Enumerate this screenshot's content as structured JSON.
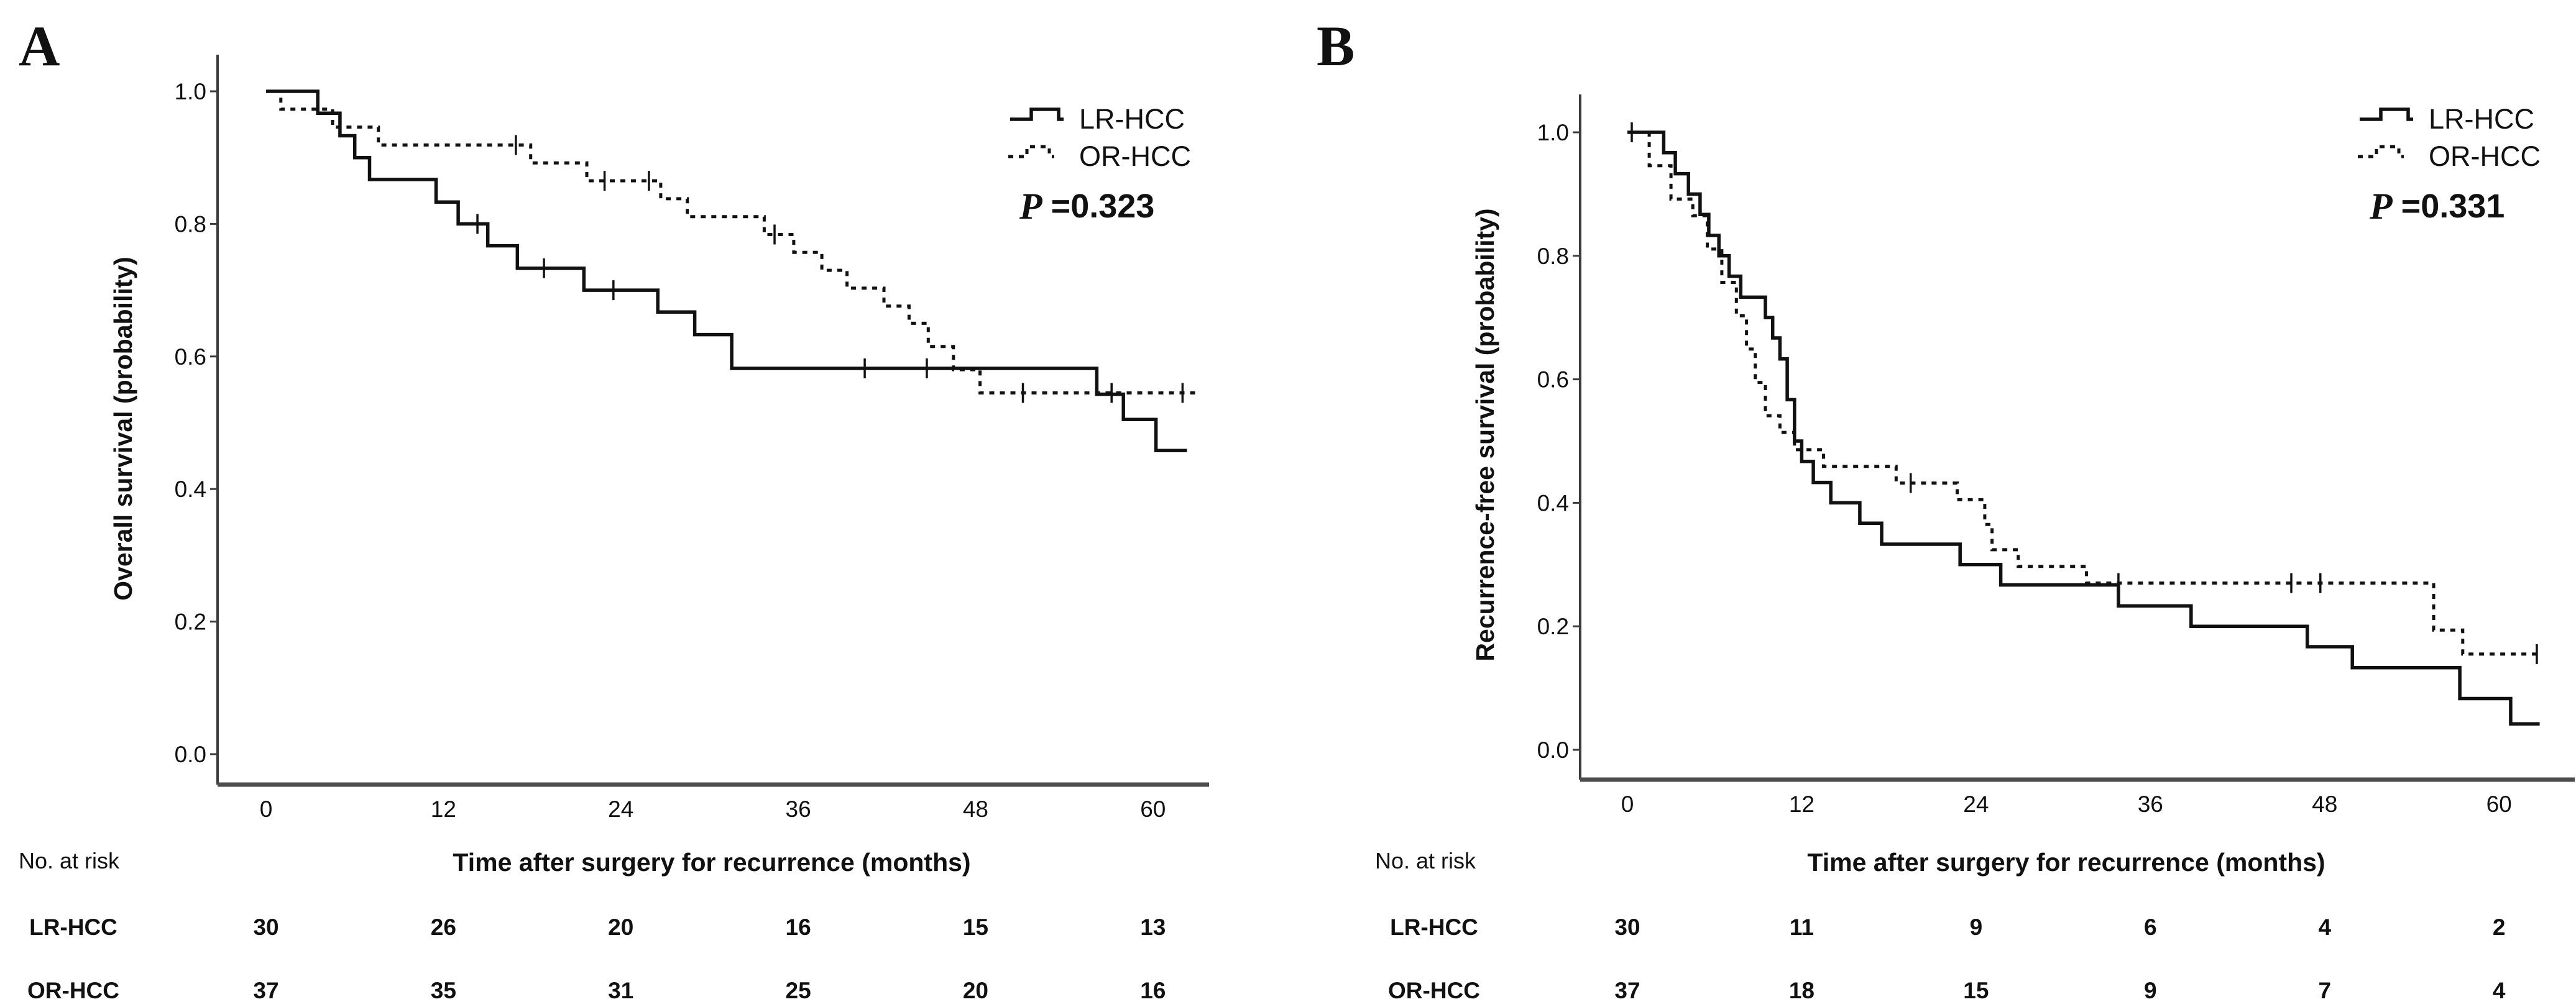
{
  "figure": {
    "background": "#ffffff",
    "line_color": "#111111",
    "axis_color": "#4d4d4d"
  },
  "chart_data": [
    {
      "panel_letter": "A",
      "type": "line",
      "subtype": "kaplan-meier-step",
      "title": "",
      "xlabel": "Time after surgery for recurrence (months)",
      "ylabel": "Overall survival (probability)",
      "p_label": "P",
      "p_value": "=0.323",
      "legend_position": "top-right",
      "grid": false,
      "xlim": [
        0,
        63.5
      ],
      "ylim": [
        0.0,
        1.0
      ],
      "x_ticks": [
        0,
        12,
        24,
        36,
        48,
        60
      ],
      "y_ticks": [
        "1.0",
        "0.8",
        "0.6",
        "0.4",
        "0.2",
        "0.0"
      ],
      "series": [
        {
          "name": "LR-HCC",
          "line_style": "solid",
          "start": [
            0,
            1.0
          ],
          "steps": [
            [
              3.5,
              0.967
            ],
            [
              5,
              0.933
            ],
            [
              6,
              0.9
            ],
            [
              7,
              0.867
            ],
            [
              11.5,
              0.833
            ],
            [
              13,
              0.8
            ],
            [
              15,
              0.767
            ],
            [
              17,
              0.733
            ],
            [
              21.5,
              0.7
            ],
            [
              26.5,
              0.667
            ],
            [
              29,
              0.633
            ],
            [
              31.5,
              0.582
            ],
            [
              56.2,
              0.543
            ],
            [
              58,
              0.505
            ],
            [
              60.2,
              0.458
            ]
          ],
          "censors": [
            [
              14.3,
              0.8
            ],
            [
              18.8,
              0.733
            ],
            [
              23.5,
              0.7
            ],
            [
              40.5,
              0.582
            ],
            [
              44.7,
              0.582
            ]
          ],
          "end_month": 62.3
        },
        {
          "name": "OR-HCC",
          "line_style": "dotted",
          "start": [
            0,
            1.0
          ],
          "steps": [
            [
              1,
              0.973
            ],
            [
              4.5,
              0.946
            ],
            [
              7.6,
              0.919
            ],
            [
              17.9,
              0.892
            ],
            [
              21.7,
              0.865
            ],
            [
              26.7,
              0.838
            ],
            [
              28.5,
              0.811
            ],
            [
              33.7,
              0.784
            ],
            [
              35.7,
              0.757
            ],
            [
              37.6,
              0.73
            ],
            [
              39.3,
              0.703
            ],
            [
              41.8,
              0.676
            ],
            [
              43.5,
              0.65
            ],
            [
              44.8,
              0.615
            ],
            [
              46.5,
              0.58
            ],
            [
              48.3,
              0.545
            ]
          ],
          "censors": [
            [
              16.9,
              0.919
            ],
            [
              22.9,
              0.865
            ],
            [
              25.9,
              0.865
            ],
            [
              34.4,
              0.784
            ],
            [
              51.2,
              0.545
            ],
            [
              57.2,
              0.545
            ],
            [
              62,
              0.545
            ]
          ],
          "end_month": 63
        }
      ],
      "risk_table": {
        "header": "No. at risk",
        "time_points": [
          0,
          12,
          24,
          36,
          48,
          60
        ],
        "rows": [
          {
            "label": "LR-HCC",
            "values": [
              30,
              26,
              20,
              16,
              15,
              13
            ]
          },
          {
            "label": "OR-HCC",
            "values": [
              37,
              35,
              31,
              25,
              20,
              16
            ]
          }
        ]
      }
    },
    {
      "panel_letter": "B",
      "type": "line",
      "subtype": "kaplan-meier-step",
      "title": "",
      "xlabel": "Time after surgery for recurrence (months)",
      "ylabel": "Recurrence-free survival (probability)",
      "p_label": "P",
      "p_value": "=0.331",
      "legend_position": "top-right",
      "grid": false,
      "xlim": [
        0,
        63.5
      ],
      "ylim": [
        0.0,
        1.0
      ],
      "x_ticks": [
        0,
        12,
        24,
        36,
        48,
        60
      ],
      "y_ticks": [
        "1.0",
        "0.8",
        "0.6",
        "0.4",
        "0.2",
        "0.0"
      ],
      "series": [
        {
          "name": "LR-HCC",
          "line_style": "solid",
          "start": [
            0,
            1.0
          ],
          "steps": [
            [
              2.5,
              0.967
            ],
            [
              3.3,
              0.933
            ],
            [
              4.2,
              0.9
            ],
            [
              5,
              0.867
            ],
            [
              5.6,
              0.833
            ],
            [
              6.3,
              0.8
            ],
            [
              7,
              0.767
            ],
            [
              7.8,
              0.733
            ],
            [
              9.5,
              0.7
            ],
            [
              10,
              0.667
            ],
            [
              10.5,
              0.633
            ],
            [
              11,
              0.567
            ],
            [
              11.5,
              0.5
            ],
            [
              12,
              0.467
            ],
            [
              12.8,
              0.433
            ],
            [
              14,
              0.4
            ],
            [
              16,
              0.367
            ],
            [
              17.5,
              0.333
            ],
            [
              22.9,
              0.3
            ],
            [
              25.7,
              0.267
            ],
            [
              33.8,
              0.233
            ],
            [
              38.8,
              0.2
            ],
            [
              46.8,
              0.167
            ],
            [
              49.9,
              0.133
            ],
            [
              57.3,
              0.083
            ],
            [
              60.8,
              0.042
            ]
          ],
          "censors": [],
          "end_month": 62.8
        },
        {
          "name": "OR-HCC",
          "line_style": "dotted",
          "start": [
            0,
            1.0
          ],
          "steps": [
            [
              1.5,
              0.946
            ],
            [
              3,
              0.892
            ],
            [
              4.5,
              0.865
            ],
            [
              5.5,
              0.811
            ],
            [
              6.5,
              0.757
            ],
            [
              7.5,
              0.703
            ],
            [
              8.2,
              0.649
            ],
            [
              8.8,
              0.595
            ],
            [
              9.5,
              0.541
            ],
            [
              10.5,
              0.514
            ],
            [
              11.5,
              0.486
            ],
            [
              13.5,
              0.459
            ],
            [
              18.5,
              0.432
            ],
            [
              22.7,
              0.405
            ],
            [
              24.6,
              0.365
            ],
            [
              25.1,
              0.324
            ],
            [
              26.9,
              0.297
            ],
            [
              31.6,
              0.27
            ],
            [
              55.5,
              0.194
            ],
            [
              57.5,
              0.155
            ]
          ],
          "censors": [
            [
              0.3,
              1.0
            ],
            [
              19.5,
              0.432
            ],
            [
              33.8,
              0.27
            ],
            [
              45.7,
              0.27
            ],
            [
              47.7,
              0.27
            ],
            [
              62.6,
              0.155
            ]
          ],
          "end_month": 62.8
        }
      ],
      "risk_table": {
        "header": "No. at risk",
        "time_points": [
          0,
          12,
          24,
          36,
          48,
          60
        ],
        "rows": [
          {
            "label": "LR-HCC",
            "values": [
              30,
              11,
              9,
              6,
              4,
              2
            ]
          },
          {
            "label": "OR-HCC",
            "values": [
              37,
              18,
              15,
              9,
              7,
              4
            ]
          }
        ]
      }
    }
  ]
}
